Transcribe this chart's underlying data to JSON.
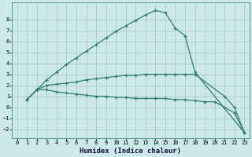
{
  "xlabel": "Humidex (Indice chaleur)",
  "xlim": [
    -0.5,
    23.5
  ],
  "ylim": [
    -2.8,
    9.5
  ],
  "xticks": [
    0,
    1,
    2,
    3,
    4,
    5,
    6,
    7,
    8,
    9,
    10,
    11,
    12,
    13,
    14,
    15,
    16,
    17,
    18,
    19,
    20,
    21,
    22,
    23
  ],
  "yticks": [
    -2,
    -1,
    0,
    1,
    2,
    3,
    4,
    5,
    6,
    7,
    8
  ],
  "bg_color": "#cce8e8",
  "grid_color": "#aacccc",
  "line_color": "#2e7d6e",
  "curve1_x": [
    1,
    2,
    3,
    4,
    5,
    6,
    7,
    8,
    9,
    10,
    11,
    12,
    13,
    14,
    15,
    16,
    17,
    18,
    23
  ],
  "curve1_y": [
    0.7,
    1.6,
    2.5,
    3.2,
    3.9,
    4.5,
    5.1,
    5.7,
    6.3,
    6.9,
    7.4,
    7.9,
    8.4,
    8.8,
    8.6,
    7.2,
    6.5,
    3.2,
    -2.3
  ],
  "curve2_x": [
    1,
    2,
    3,
    4,
    5,
    6,
    7,
    8,
    9,
    10,
    11,
    12,
    13,
    14,
    15,
    16,
    17,
    18,
    21,
    22,
    23
  ],
  "curve2_y": [
    0.7,
    1.6,
    2.0,
    2.1,
    2.2,
    2.3,
    2.5,
    2.6,
    2.7,
    2.8,
    2.9,
    2.9,
    3.0,
    3.0,
    3.0,
    3.0,
    3.0,
    3.0,
    1.0,
    0.0,
    -2.3
  ],
  "curve3_x": [
    1,
    2,
    3,
    4,
    5,
    6,
    7,
    8,
    9,
    10,
    11,
    12,
    13,
    14,
    15,
    16,
    17,
    18,
    19,
    20,
    21,
    22,
    23
  ],
  "curve3_y": [
    0.7,
    1.6,
    1.6,
    1.4,
    1.3,
    1.2,
    1.1,
    1.0,
    1.0,
    0.9,
    0.9,
    0.8,
    0.8,
    0.8,
    0.8,
    0.7,
    0.7,
    0.6,
    0.5,
    0.5,
    0.0,
    -0.5,
    -2.3
  ]
}
